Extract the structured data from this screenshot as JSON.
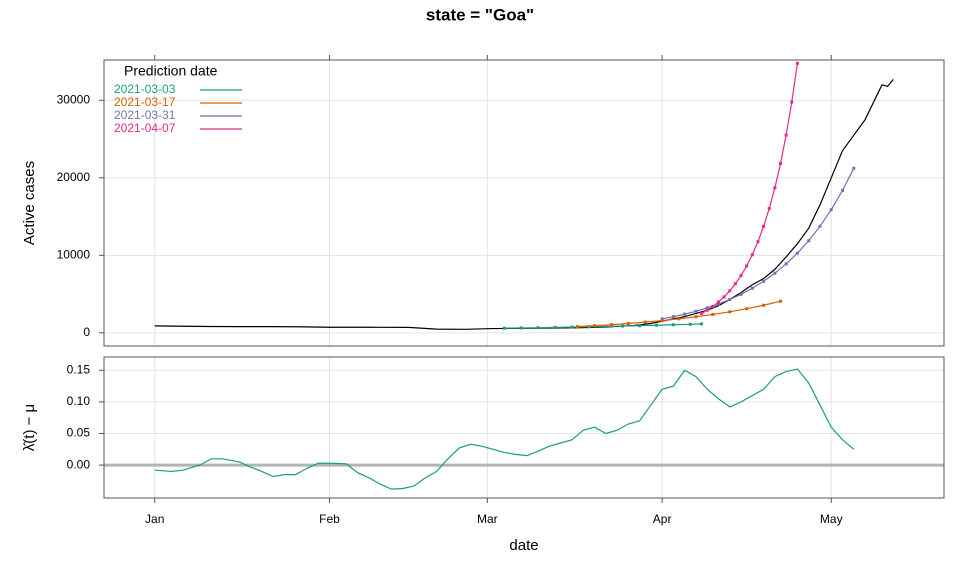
{
  "chart_data": [
    {
      "type": "line",
      "title": "state = \"Goa\"",
      "ylabel": "Active cases",
      "legend_title": "Prediction date",
      "legend": "top-left",
      "grid": true,
      "xlim": [
        -9,
        140
      ],
      "xticks": [
        {
          "value": 0,
          "label": "Jan"
        },
        {
          "value": 31,
          "label": "Feb"
        },
        {
          "value": 59,
          "label": "Mar"
        },
        {
          "value": 90,
          "label": "Apr"
        },
        {
          "value": 120,
          "label": "May"
        }
      ],
      "ylim": [
        -1700,
        35200
      ],
      "yticks": [
        0,
        10000,
        20000,
        30000
      ],
      "series": [
        {
          "color": "#000000",
          "x": [
            0,
            5,
            10,
            15,
            20,
            25,
            31,
            38,
            45,
            50,
            55,
            60,
            65,
            70,
            75,
            80,
            85,
            88,
            90,
            92,
            94,
            96,
            98,
            100,
            102,
            104,
            106,
            108,
            110,
            112,
            114,
            116,
            118,
            120,
            122,
            124,
            126,
            128,
            129,
            130,
            131
          ],
          "values": [
            900,
            850,
            820,
            800,
            800,
            780,
            720,
            720,
            700,
            480,
            450,
            550,
            580,
            620,
            650,
            750,
            950,
            1200,
            1500,
            1800,
            2100,
            2500,
            2900,
            3500,
            4300,
            5200,
            6200,
            7000,
            8200,
            9800,
            11500,
            13500,
            16500,
            20000,
            23500,
            25500,
            27500,
            30500,
            32000,
            31800,
            32700
          ]
        },
        {
          "name": "2021-03-03",
          "color": "#1b9e77",
          "markers": true,
          "x": [
            62,
            65,
            68,
            71,
            74,
            77,
            80,
            83,
            86,
            89,
            92,
            95,
            97
          ],
          "values": [
            600,
            630,
            660,
            700,
            740,
            780,
            820,
            870,
            920,
            980,
            1040,
            1100,
            1150
          ]
        },
        {
          "name": "2021-03-17",
          "color": "#d95f02",
          "markers": true,
          "x": [
            75,
            78,
            81,
            84,
            87,
            90,
            93,
            96,
            99,
            102,
            105,
            108,
            111
          ],
          "values": [
            800,
            917,
            1050,
            1200,
            1376,
            1577,
            1805,
            2070,
            2370,
            2715,
            3110,
            3560,
            4080
          ]
        },
        {
          "name": "2021-03-31",
          "color": "#7570b3",
          "markers": true,
          "x": [
            90,
            92,
            94,
            96,
            98,
            100,
            102,
            104,
            106,
            108,
            110,
            112,
            114,
            116,
            118,
            120,
            122,
            124
          ],
          "values": [
            1800,
            2080,
            2410,
            2780,
            3220,
            3720,
            4300,
            4970,
            5750,
            6650,
            7690,
            8890,
            10280,
            11880,
            13740,
            15890,
            18370,
            21240
          ]
        },
        {
          "name": "2021-04-07",
          "color": "#e7298a",
          "markers": true,
          "x": [
            97,
            98,
            99,
            100,
            101,
            102,
            103,
            104,
            105,
            106,
            107,
            108,
            109,
            110,
            111,
            112,
            113,
            114
          ],
          "values": [
            2500,
            2920,
            3400,
            3980,
            4640,
            5420,
            6330,
            7390,
            8630,
            10070,
            11760,
            13730,
            16030,
            18710,
            21850,
            25510,
            29780,
            34770
          ]
        }
      ]
    },
    {
      "type": "line",
      "ylabel": "λ̂(t) − μ",
      "xlabel": "date",
      "grid": true,
      "hline": 0,
      "xlim": [
        -9,
        140
      ],
      "xticks": [
        {
          "value": 0,
          "label": "Jan"
        },
        {
          "value": 31,
          "label": "Feb"
        },
        {
          "value": 59,
          "label": "Mar"
        },
        {
          "value": 90,
          "label": "Apr"
        },
        {
          "value": 120,
          "label": "May"
        }
      ],
      "ylim": [
        -0.052,
        0.171
      ],
      "yticks": [
        {
          "value": 0,
          "label": "0.00"
        },
        {
          "value": 0.05,
          "label": "0.05"
        },
        {
          "value": 0.1,
          "label": "0.10"
        },
        0.15
      ],
      "series": [
        {
          "color": "#1b9e77",
          "x": [
            0,
            3,
            5,
            8,
            10,
            12,
            15,
            17,
            19,
            21,
            23,
            25,
            27,
            29,
            31,
            34,
            36,
            38,
            40,
            42,
            44,
            46,
            48,
            50,
            52,
            54,
            56,
            58,
            60,
            62,
            64,
            66,
            68,
            70,
            72,
            74,
            76,
            78,
            80,
            82,
            84,
            86,
            88,
            90,
            92,
            94,
            96,
            98,
            100,
            102,
            104,
            106,
            108,
            110,
            112,
            114,
            116,
            118,
            120,
            122,
            124
          ],
          "values": [
            -0.008,
            -0.01,
            -0.008,
            0,
            0.01,
            0.01,
            0.005,
            -0.003,
            -0.01,
            -0.018,
            -0.015,
            -0.015,
            -0.005,
            0.003,
            0.003,
            0.002,
            -0.012,
            -0.02,
            -0.03,
            -0.038,
            -0.037,
            -0.033,
            -0.02,
            -0.01,
            0.01,
            0.027,
            0.033,
            0.03,
            0.025,
            0.02,
            0.017,
            0.015,
            0.022,
            0.03,
            0.035,
            0.04,
            0.055,
            0.06,
            0.05,
            0.055,
            0.065,
            0.07,
            0.095,
            0.12,
            0.125,
            0.15,
            0.14,
            0.12,
            0.105,
            0.092,
            0.1,
            0.11,
            0.12,
            0.14,
            0.148,
            0.152,
            0.13,
            0.095,
            0.06,
            0.04,
            0.025
          ]
        }
      ]
    }
  ]
}
